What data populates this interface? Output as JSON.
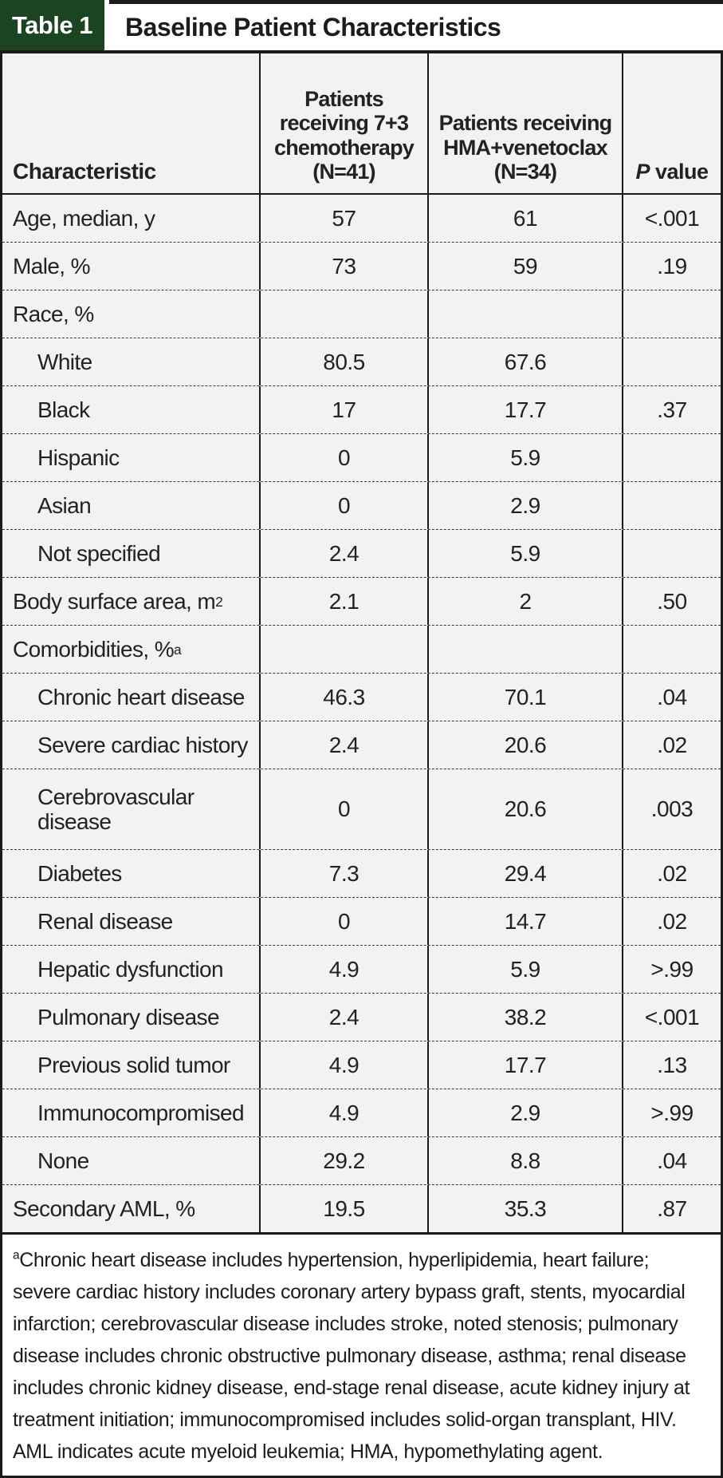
{
  "title_bar": {
    "tag": "Table 1",
    "title": "Baseline Patient Characteristics"
  },
  "table": {
    "col_headers": {
      "characteristic": "Characteristic",
      "col1": "Patients\nreceiving 7+3\nchemotherapy\n(N=41)",
      "col2": "Patients receiving\nHMA+venetoclax\n(N=34)",
      "p_italic": "P",
      "p_rest": " value"
    },
    "rows": [
      {
        "label": "Age, median, y",
        "sup": "",
        "v1": "57",
        "v2": "61",
        "p": "<.001",
        "indent": false,
        "tall": false
      },
      {
        "label": "Male, %",
        "sup": "",
        "v1": "73",
        "v2": "59",
        "p": ".19",
        "indent": false,
        "tall": false
      },
      {
        "label": "Race, %",
        "sup": "",
        "v1": "",
        "v2": "",
        "p": "",
        "indent": false,
        "tall": false
      },
      {
        "label": "White",
        "sup": "",
        "v1": "80.5",
        "v2": "67.6",
        "p": "",
        "indent": true,
        "tall": false
      },
      {
        "label": "Black",
        "sup": "",
        "v1": "17",
        "v2": "17.7",
        "p": ".37",
        "indent": true,
        "tall": false
      },
      {
        "label": "Hispanic",
        "sup": "",
        "v1": "0",
        "v2": "5.9",
        "p": "",
        "indent": true,
        "tall": false
      },
      {
        "label": "Asian",
        "sup": "",
        "v1": "0",
        "v2": "2.9",
        "p": "",
        "indent": true,
        "tall": false
      },
      {
        "label": "Not specified",
        "sup": "",
        "v1": "2.4",
        "v2": "5.9",
        "p": "",
        "indent": true,
        "tall": false
      },
      {
        "label": "Body surface area, m",
        "sup": "2",
        "v1": "2.1",
        "v2": "2",
        "p": ".50",
        "indent": false,
        "tall": false
      },
      {
        "label": "Comorbidities, %",
        "sup": "a",
        "v1": "",
        "v2": "",
        "p": "",
        "indent": false,
        "tall": false
      },
      {
        "label": "Chronic heart disease",
        "sup": "",
        "v1": "46.3",
        "v2": "70.1",
        "p": ".04",
        "indent": true,
        "tall": false
      },
      {
        "label": "Severe cardiac history",
        "sup": "",
        "v1": "2.4",
        "v2": "20.6",
        "p": ".02",
        "indent": true,
        "tall": false
      },
      {
        "label": "Cerebrovascular disease",
        "sup": "",
        "v1": "0",
        "v2": "20.6",
        "p": ".003",
        "indent": true,
        "tall": true
      },
      {
        "label": "Diabetes",
        "sup": "",
        "v1": "7.3",
        "v2": "29.4",
        "p": ".02",
        "indent": true,
        "tall": false
      },
      {
        "label": "Renal disease",
        "sup": "",
        "v1": "0",
        "v2": "14.7",
        "p": ".02",
        "indent": true,
        "tall": false
      },
      {
        "label": "Hepatic dysfunction",
        "sup": "",
        "v1": "4.9",
        "v2": "5.9",
        "p": ">.99",
        "indent": true,
        "tall": false
      },
      {
        "label": "Pulmonary disease",
        "sup": "",
        "v1": "2.4",
        "v2": "38.2",
        "p": "<.001",
        "indent": true,
        "tall": false
      },
      {
        "label": "Previous solid tumor",
        "sup": "",
        "v1": "4.9",
        "v2": "17.7",
        "p": ".13",
        "indent": true,
        "tall": false
      },
      {
        "label": "Immunocompromised",
        "sup": "",
        "v1": "4.9",
        "v2": "2.9",
        "p": ">.99",
        "indent": true,
        "tall": false
      },
      {
        "label": "None",
        "sup": "",
        "v1": "29.2",
        "v2": "8.8",
        "p": ".04",
        "indent": true,
        "tall": false
      },
      {
        "label": "Secondary AML, %",
        "sup": "",
        "v1": "19.5",
        "v2": "35.3",
        "p": ".87",
        "indent": false,
        "tall": false
      }
    ]
  },
  "footnote": {
    "marker": "a",
    "text": "Chronic heart disease includes hypertension, hyperlipidemia, heart failure; severe cardiac history includes coronary artery bypass graft, stents, myocardial infarction; cerebrovascular disease includes stroke, noted stenosis; pulmonary disease includes chronic obstructive pulmonary disease, asthma; renal disease includes chronic kidney disease, end-stage renal disease, acute kidney injury at treatment initiation; immunocompromised includes solid-organ transplant, HIV.",
    "abbrev": "AML indicates acute myeloid leukemia; HMA, hypomethylating agent."
  },
  "colors": {
    "accent_green": "#1b4522",
    "cell_bg": "#f2f2f1",
    "border": "#1a1a1a"
  }
}
